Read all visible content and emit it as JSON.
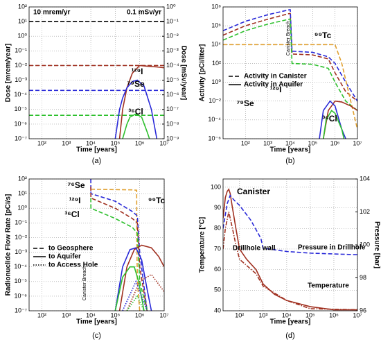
{
  "chart_data": [
    {
      "type": "line",
      "caption": "(a)",
      "xlabel": "Time [years]",
      "ylabel": "Dose [mrem/year]",
      "y2label": "Dose [mSv/year]",
      "xscale": "log",
      "yscale": "log",
      "grid": true,
      "xlim": [
        30,
        10000000
      ],
      "xticks": [
        {
          "value": 100,
          "label": "10²"
        },
        {
          "value": 1000,
          "label": "10³"
        },
        {
          "value": 10000,
          "label": "10⁴"
        },
        {
          "value": 100000,
          "label": "10⁵"
        },
        {
          "value": 1000000,
          "label": "10⁶"
        },
        {
          "value": 10000000,
          "label": "10⁷"
        }
      ],
      "ylim": [
        1e-07,
        100
      ],
      "yticks": [
        {
          "value": 1e-07,
          "label": "10⁻⁷"
        },
        {
          "value": 1e-06,
          "label": "10⁻⁶"
        },
        {
          "value": 1e-05,
          "label": "10⁻⁵"
        },
        {
          "value": 0.0001,
          "label": "10⁻⁴"
        },
        {
          "value": 0.001,
          "label": "10⁻³"
        },
        {
          "value": 0.01,
          "label": "10⁻²"
        },
        {
          "value": 0.1,
          "label": "10⁻¹"
        },
        {
          "value": 1,
          "label": "10⁰"
        },
        {
          "value": 10,
          "label": "10¹"
        },
        {
          "value": 100,
          "label": "10²"
        }
      ],
      "y2lim": [
        1e-09,
        1
      ],
      "y2ticks": [
        {
          "value": 1e-09,
          "label": "10⁻⁹"
        },
        {
          "value": 1e-08,
          "label": "10⁻⁸"
        },
        {
          "value": 1e-07,
          "label": "10⁻⁷"
        },
        {
          "value": 1e-06,
          "label": "10⁻⁶"
        },
        {
          "value": 1e-05,
          "label": "10⁻⁵"
        },
        {
          "value": 0.0001,
          "label": "10⁻⁴"
        },
        {
          "value": 0.001,
          "label": "10⁻³"
        },
        {
          "value": 0.01,
          "label": "10⁻²"
        },
        {
          "value": 0.1,
          "label": "10⁻¹"
        },
        {
          "value": 1,
          "label": "10⁰"
        }
      ],
      "series": [
        {
          "color": "#000000",
          "dash": "dashed",
          "x": [
            30,
            10000000
          ],
          "values": [
            10,
            10
          ]
        },
        {
          "color": "#a03020",
          "dash": "dashed",
          "x": [
            30,
            10000000
          ],
          "values": [
            0.01,
            0.01
          ]
        },
        {
          "color": "#2a2ad8",
          "dash": "dashed",
          "x": [
            30,
            10000000
          ],
          "values": [
            0.0002,
            0.0002
          ]
        },
        {
          "color": "#2ec02e",
          "dash": "dashed",
          "x": [
            30,
            10000000
          ],
          "values": [
            4e-06,
            4e-06
          ]
        },
        {
          "color": "#a03020",
          "dash": "solid",
          "x": [
            150000,
            200000,
            300000,
            500000,
            1000000,
            2000000,
            5000000,
            10000000
          ],
          "values": [
            1e-07,
            1e-05,
            0.0003,
            0.003,
            0.01,
            0.009,
            0.008,
            0.007
          ]
        },
        {
          "color": "#2a2ad8",
          "dash": "solid",
          "x": [
            100000,
            150000,
            200000,
            300000,
            500000,
            800000,
            1500000,
            3000000,
            5000000
          ],
          "values": [
            1e-07,
            1e-05,
            6e-05,
            0.0003,
            0.0008,
            0.001,
            0.0004,
            1e-05,
            1e-07
          ]
        },
        {
          "color": "#2ec02e",
          "dash": "solid",
          "x": [
            200000,
            300000,
            400000,
            700000,
            1200000,
            2000000,
            2500000
          ],
          "values": [
            1e-07,
            1e-06,
            3e-06,
            5e-06,
            3e-06,
            3e-07,
            1e-07
          ]
        }
      ],
      "annotations": [
        {
          "text": "10 mrem/yr",
          "color": "#000000"
        },
        {
          "text": "0.1 mSv/yr",
          "color": "#000000"
        },
        {
          "text": "¹²⁹I",
          "color": "#a03020"
        },
        {
          "text": "⁷⁹Se",
          "color": "#2a2ad8"
        },
        {
          "text": "³⁶Cl",
          "color": "#2ec02e"
        }
      ]
    },
    {
      "type": "line",
      "caption": "(b)",
      "xlabel": "Time [years]",
      "ylabel": "Activity [pCi/liter]",
      "xscale": "log",
      "yscale": "log",
      "grid": true,
      "xlim": [
        10,
        10000000
      ],
      "xticks": [
        {
          "value": 100,
          "label": "10²"
        },
        {
          "value": 1000,
          "label": "10³"
        },
        {
          "value": 10000,
          "label": "10⁴"
        },
        {
          "value": 100000,
          "label": "10⁵"
        },
        {
          "value": 1000000,
          "label": "10⁶"
        },
        {
          "value": 10000000,
          "label": "10⁷"
        }
      ],
      "ylim": [
        1e-06,
        100000000
      ],
      "yticks": [
        {
          "value": 1e-06,
          "label": "10⁻⁶"
        },
        {
          "value": 0.0001,
          "label": "10⁻⁴"
        },
        {
          "value": 0.01,
          "label": "10⁻²"
        },
        {
          "value": 1,
          "label": "10⁰"
        },
        {
          "value": 100,
          "label": "10²"
        },
        {
          "value": 10000,
          "label": "10⁴"
        },
        {
          "value": 1000000,
          "label": "10⁶"
        },
        {
          "value": 100000000,
          "label": "10⁸"
        }
      ],
      "series": [
        {
          "color": "#a03020",
          "dash": "dashed",
          "x": [
            10,
            100,
            1000,
            9000,
            10000,
            12000,
            100000,
            500000,
            1000000,
            3000000,
            10000000
          ],
          "values": [
            100000,
            1000000,
            5000000,
            20000000,
            20000000,
            1000,
            800,
            300,
            10,
            0.1,
            0.01
          ]
        },
        {
          "color": "#2a2ad8",
          "dash": "dashed",
          "x": [
            10,
            100,
            1000,
            9000,
            10000,
            12000,
            100000,
            500000,
            1000000,
            3000000,
            10000000
          ],
          "values": [
            300000,
            3000000,
            15000000,
            50000000,
            50000000,
            2000,
            1500,
            500,
            100,
            1,
            0.01
          ]
        },
        {
          "color": "#2ec02e",
          "dash": "dashed",
          "x": [
            10,
            100,
            1000,
            9000,
            10000,
            12000,
            100000,
            500000,
            1000000,
            3000000,
            10000000
          ],
          "values": [
            30000,
            300000,
            1500000,
            5000000,
            5000000,
            100,
            80,
            30,
            1,
            0.01,
            0.001
          ]
        },
        {
          "color": "#e0a030",
          "dash": "dashed",
          "x": [
            10,
            10000,
            12000,
            500000,
            1000000,
            2000000,
            5000000,
            10000000
          ],
          "values": [
            10000,
            10000,
            10000,
            10000,
            10000,
            100,
            0.01,
            1e-05
          ]
        },
        {
          "color": "#a03020",
          "dash": "solid",
          "x": [
            300000,
            500000,
            1000000,
            2000000,
            5000000,
            10000000
          ],
          "values": [
            1e-06,
            0.001,
            0.01,
            0.008,
            0.003,
            0.001
          ]
        },
        {
          "color": "#2a2ad8",
          "dash": "solid",
          "x": [
            200000,
            300000,
            600000,
            1000000,
            2000000,
            3000000
          ],
          "values": [
            1e-06,
            0.001,
            0.01,
            0.003,
            1e-05,
            1e-06
          ]
        },
        {
          "color": "#2ec02e",
          "dash": "solid",
          "x": [
            300000,
            400000,
            700000,
            1000000,
            2000000,
            2500000
          ],
          "values": [
            1e-06,
            0.0001,
            0.001,
            0.0005,
            1e-05,
            1e-06
          ]
        }
      ],
      "legend": [
        {
          "label": "Activity in Canister",
          "dash": "dashed"
        },
        {
          "label": "Activity in Aquifer",
          "dash": "solid"
        }
      ],
      "legend_position": "center-left",
      "annotations": [
        {
          "text": "Canister Breach",
          "color": "#000000"
        },
        {
          "text": "⁹⁹Tc",
          "color": "#e0a030"
        },
        {
          "text": "¹²⁹I",
          "color": "#a03020"
        },
        {
          "text": "⁷⁹Se",
          "color": "#2a2ad8"
        },
        {
          "text": "³⁶Cl",
          "color": "#2ec02e"
        }
      ]
    },
    {
      "type": "line",
      "caption": "(c)",
      "xlabel": "Time [years]",
      "ylabel": "Radionuclide Flow Rate [pCi/s]",
      "xscale": "log",
      "yscale": "log",
      "grid": true,
      "xlim": [
        30,
        10000000
      ],
      "xticks": [
        {
          "value": 100,
          "label": "10²"
        },
        {
          "value": 1000,
          "label": "10³"
        },
        {
          "value": 10000,
          "label": "10⁴"
        },
        {
          "value": 100000,
          "label": "10⁵"
        },
        {
          "value": 1000000,
          "label": "10⁶"
        },
        {
          "value": 10000000,
          "label": "10⁷"
        }
      ],
      "ylim": [
        1e-07,
        100
      ],
      "yticks": [
        {
          "value": 1e-07,
          "label": "10⁻⁷"
        },
        {
          "value": 1e-06,
          "label": "10⁻⁶"
        },
        {
          "value": 1e-05,
          "label": "10⁻⁵"
        },
        {
          "value": 0.0001,
          "label": "10⁻⁴"
        },
        {
          "value": 0.001,
          "label": "10⁻³"
        },
        {
          "value": 0.01,
          "label": "10⁻²"
        },
        {
          "value": 0.1,
          "label": "10⁻¹"
        },
        {
          "value": 1,
          "label": "10⁰"
        },
        {
          "value": 10,
          "label": "10¹"
        },
        {
          "value": 100,
          "label": "10²"
        }
      ],
      "series": [
        {
          "color": "#e0a030",
          "dash": "dashed",
          "x": [
            10000,
            500000,
            750000,
            760000,
            800000,
            1000000
          ],
          "values": [
            20,
            18,
            17,
            0.01,
            1e-05,
            1e-07
          ]
        },
        {
          "color": "#2a2ad8",
          "dash": "dashed",
          "x": [
            10000,
            10100,
            100000,
            500000,
            800000,
            1000000,
            2000000
          ],
          "values": [
            100,
            10,
            3,
            0.6,
            0.3,
            0.001,
            1e-07
          ]
        },
        {
          "color": "#a03020",
          "dash": "dashed",
          "x": [
            10000,
            10100,
            100000,
            500000,
            800000,
            1000000,
            2000000
          ],
          "values": [
            30,
            5,
            1,
            0.2,
            0.1,
            0.0001,
            1e-07
          ]
        },
        {
          "color": "#2ec02e",
          "dash": "dashed",
          "x": [
            10000,
            10100,
            100000,
            500000,
            800000,
            1000000,
            2000000
          ],
          "values": [
            5,
            1,
            0.2,
            0.05,
            0.02,
            1e-05,
            1e-07
          ]
        },
        {
          "color": "#a03020",
          "dash": "solid",
          "x": [
            150000,
            300000,
            600000,
            1200000,
            3000000,
            6000000,
            10000000
          ],
          "values": [
            1e-07,
            0.0001,
            0.0015,
            0.003,
            0.002,
            0.0005,
            0.0001
          ]
        },
        {
          "color": "#2a2ad8",
          "dash": "solid",
          "x": [
            100000,
            200000,
            400000,
            700000,
            1200000,
            2000000,
            3000000
          ],
          "values": [
            1e-07,
            0.0001,
            0.0015,
            0.002,
            0.0003,
            3e-06,
            1e-07
          ]
        },
        {
          "color": "#2ec02e",
          "dash": "solid",
          "x": [
            100000,
            200000,
            400000,
            600000,
            900000,
            1500000
          ],
          "values": [
            1e-07,
            2e-05,
            0.0001,
            0.0001,
            1e-05,
            1e-07
          ]
        },
        {
          "color": "#a03020",
          "dash": "dotted",
          "x": [
            300000,
            1000000,
            3000000,
            10000000
          ],
          "values": [
            1e-07,
            1e-05,
            3e-05,
            2e-06
          ]
        },
        {
          "color": "#2a2ad8",
          "dash": "dotted",
          "x": [
            200000,
            700000,
            2000000
          ],
          "values": [
            1e-07,
            1e-05,
            1e-07
          ]
        },
        {
          "color": "#2ec02e",
          "dash": "dotted",
          "x": [
            300000,
            800000,
            1500000
          ],
          "values": [
            1e-07,
            1e-06,
            1e-07
          ]
        }
      ],
      "legend": [
        {
          "label": "to Geosphere",
          "dash": "dashed"
        },
        {
          "label": "to Aquifer",
          "dash": "solid"
        },
        {
          "label": "to Access Hole",
          "dash": "dotted"
        }
      ],
      "legend_position": "center-left",
      "annotations": [
        {
          "text": "⁷⁶Se",
          "color": "#2a2ad8"
        },
        {
          "text": "¹²⁹I",
          "color": "#a03020"
        },
        {
          "text": "³⁶Cl",
          "color": "#2ec02e"
        },
        {
          "text": "⁹⁹Tc",
          "color": "#e0a030"
        },
        {
          "text": "Canister Breach",
          "color": "#000000"
        }
      ]
    },
    {
      "type": "line",
      "caption": "(d)",
      "xlabel": "Time [years]",
      "ylabel": "Temperature [°C]",
      "y2label": "Pressure [bar]",
      "xscale": "log",
      "yscale": "linear",
      "grid": true,
      "xlim": [
        20,
        10000000
      ],
      "xticks": [
        {
          "value": 100,
          "label": "10²"
        },
        {
          "value": 1000,
          "label": "10³"
        },
        {
          "value": 10000,
          "label": "10⁴"
        },
        {
          "value": 100000,
          "label": "10⁵"
        },
        {
          "value": 1000000,
          "label": "10⁶"
        },
        {
          "value": 10000000,
          "label": "10⁷"
        }
      ],
      "ylim": [
        40,
        104
      ],
      "yticks": [
        40,
        50,
        60,
        70,
        80,
        90,
        100
      ],
      "y2lim": [
        96,
        104
      ],
      "y2ticks": [
        96,
        98,
        100,
        102,
        104
      ],
      "series": [
        {
          "color": "#a03020",
          "dash": "solid",
          "x": [
            20,
            25,
            30,
            35,
            40,
            50,
            70,
            100,
            200,
            500,
            1000,
            3000,
            10000,
            100000,
            1000000,
            10000000
          ],
          "values": [
            85,
            95,
            98,
            99,
            97,
            90,
            80,
            70,
            65,
            60,
            53,
            48,
            45,
            42,
            40.5,
            40.5
          ]
        },
        {
          "color": "#a03020",
          "dash": "dashdot",
          "x": [
            20,
            25,
            35,
            50,
            70,
            100,
            200,
            500,
            1000,
            10000,
            100000,
            10000000
          ],
          "values": [
            70,
            80,
            88,
            80,
            72,
            65,
            62,
            58,
            52,
            45,
            41,
            40.5
          ]
        },
        {
          "color": "#2a2ad8",
          "dash": "dashed",
          "axis": "y2",
          "x": [
            20,
            30,
            40,
            60,
            100,
            300,
            800,
            1000,
            10000,
            100000,
            10000000
          ],
          "values": [
            101,
            102.5,
            103,
            102.7,
            102.4,
            101.5,
            100.4,
            99.8,
            99.6,
            99.5,
            99.4
          ]
        }
      ],
      "annotations": [
        {
          "text": "Canister",
          "color": "#a03020"
        },
        {
          "text": "Drillhole wall",
          "color": "#a03020"
        },
        {
          "text": "Pressure in Drillhole",
          "color": "#2a2ad8"
        },
        {
          "text": "Temperature",
          "color": "#a03020"
        }
      ]
    }
  ]
}
